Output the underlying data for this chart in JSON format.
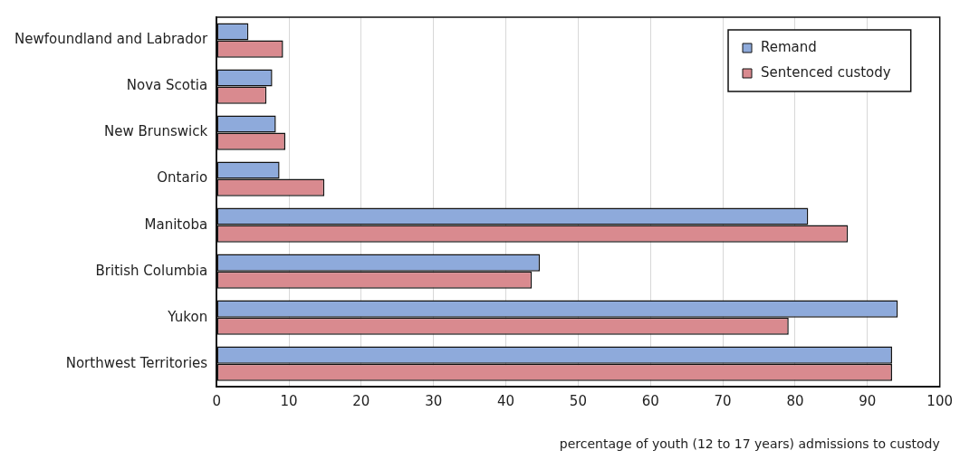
{
  "chart_data": {
    "type": "bar",
    "orientation": "horizontal",
    "xlabel": "percentage of youth (12 to 17 years) admissions to custody",
    "categories": [
      "Newfoundland and Labrador",
      "Nova Scotia",
      "New Brunswick",
      "Ontario",
      "Manitoba",
      "British Columbia",
      "Yukon",
      "Northwest Territories"
    ],
    "series": [
      {
        "name": "Remand",
        "color": "#8eaadb",
        "values": [
          4.4,
          7.7,
          8.2,
          8.7,
          81.8,
          44.7,
          94.2,
          93.4
        ]
      },
      {
        "name": "Sentenced custody",
        "color": "#d98a8f",
        "values": [
          9.2,
          6.9,
          9.5,
          14.9,
          87.3,
          43.6,
          79.1,
          93.4
        ]
      }
    ],
    "xlim": [
      0,
      100
    ],
    "xticks": [
      0,
      10,
      20,
      30,
      40,
      50,
      60,
      70,
      80,
      90,
      100
    ],
    "grid": "x",
    "legend": "top right"
  }
}
